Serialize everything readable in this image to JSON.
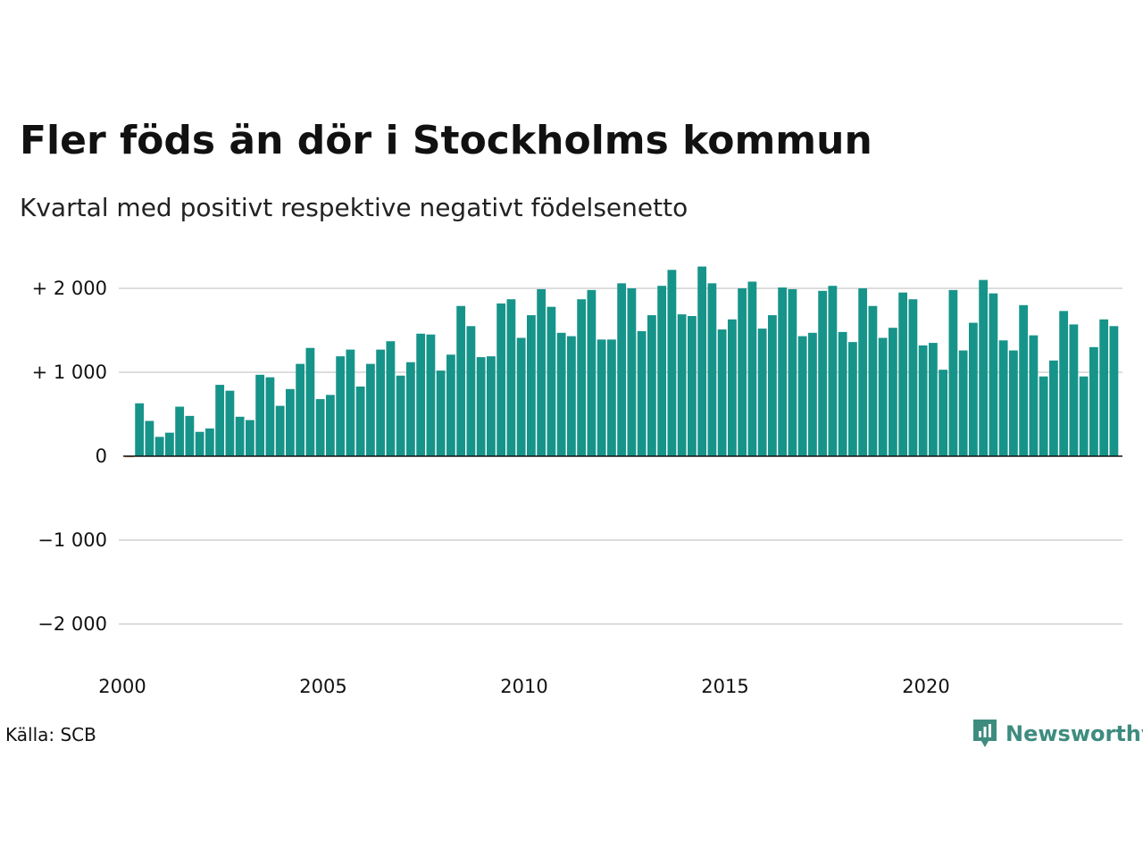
{
  "title": "Fler föds än dör i Stockholms kommun",
  "subtitle": "Kvartal med positivt respektive negativt födelsenetto",
  "source": "Källa: SCB",
  "brand": "Newsworthy",
  "colors": {
    "positive": "#17948a",
    "negative": "#e07b2a",
    "grid": "#dddddd",
    "brand": "#3d8c7f"
  },
  "chart_data": {
    "type": "bar",
    "x_start": "2000",
    "x_end": "2024",
    "x_unit": "quarter",
    "ylim": [
      -2300,
      2300
    ],
    "yticks": [
      2000,
      1000,
      0,
      -1000,
      -2000
    ],
    "ytick_labels": [
      "+ 2 000",
      "+ 1 000",
      "0",
      "−1 000",
      "−2 000"
    ],
    "xticks": [
      2000,
      2005,
      2010,
      2015,
      2020
    ],
    "xtick_labels": [
      "2000",
      "2005",
      "2010",
      "2015",
      "2020"
    ],
    "grid": true,
    "legend": false,
    "series": [
      {
        "values": [
          -10,
          630,
          420,
          230,
          280,
          590,
          480,
          290,
          330,
          850,
          780,
          470,
          430,
          970,
          940,
          600,
          800,
          1100,
          1290,
          680,
          730,
          1190,
          1270,
          830,
          1100,
          1270,
          1370,
          960,
          1120,
          1460,
          1450,
          1020,
          1210,
          1790,
          1550,
          1180,
          1190,
          1820,
          1870,
          1410,
          1680,
          1990,
          1780,
          1470,
          1430,
          1870,
          1980,
          1390,
          1390,
          2060,
          2000,
          1490,
          1680,
          2030,
          2220,
          1690,
          1670,
          2260,
          2060,
          1510,
          1630,
          2000,
          2080,
          1520,
          1680,
          2010,
          1990,
          1430,
          1470,
          1970,
          2030,
          1480,
          1360,
          2000,
          1790,
          1410,
          1530,
          1950,
          1870,
          1320,
          1350,
          1030,
          1980,
          1260,
          1590,
          2100,
          1940,
          1380,
          1260,
          1800,
          1440,
          950,
          1140,
          1730,
          1570,
          950,
          1300,
          1630,
          1550
        ]
      }
    ]
  }
}
